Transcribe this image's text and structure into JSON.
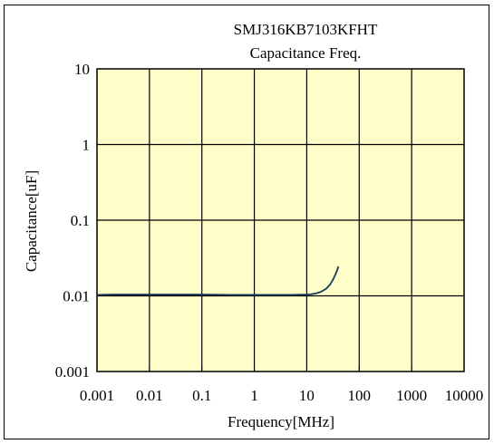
{
  "chart_data": {
    "type": "line",
    "title": "SMJ316KB7103KFHT",
    "subtitle": "Capacitance Freq.",
    "xlabel": "Frequency[MHz]",
    "ylabel": "Capacitance[uF]",
    "x_scale": "log",
    "y_scale": "log",
    "xlim": [
      0.001,
      10000
    ],
    "ylim": [
      0.001,
      10
    ],
    "x_ticks": [
      0.001,
      0.01,
      0.1,
      1,
      10,
      100,
      1000,
      10000
    ],
    "x_tick_labels": [
      "0.001",
      "0.01",
      "0.1",
      "1",
      "10",
      "100",
      "1000",
      "10000"
    ],
    "y_ticks": [
      0.001,
      0.01,
      0.1,
      1,
      10
    ],
    "y_tick_labels": [
      "0.001",
      "0.01",
      "0.1",
      "1",
      "10"
    ],
    "grid": true,
    "plot_background": "#fffdc8",
    "grid_color": "#000000",
    "line_color": "#1a3a5c",
    "series": [
      {
        "x": [
          0.001,
          0.002,
          0.005,
          0.01,
          0.05,
          0.1,
          0.5,
          1,
          2,
          5,
          10,
          12,
          15,
          18,
          20,
          24,
          28,
          32,
          35,
          38,
          40
        ],
        "y": [
          0.0103,
          0.0104,
          0.0104,
          0.0104,
          0.0104,
          0.0104,
          0.0103,
          0.0103,
          0.0103,
          0.0103,
          0.0104,
          0.0105,
          0.0108,
          0.0112,
          0.0116,
          0.0126,
          0.0142,
          0.0166,
          0.019,
          0.0218,
          0.0245
        ]
      }
    ]
  }
}
